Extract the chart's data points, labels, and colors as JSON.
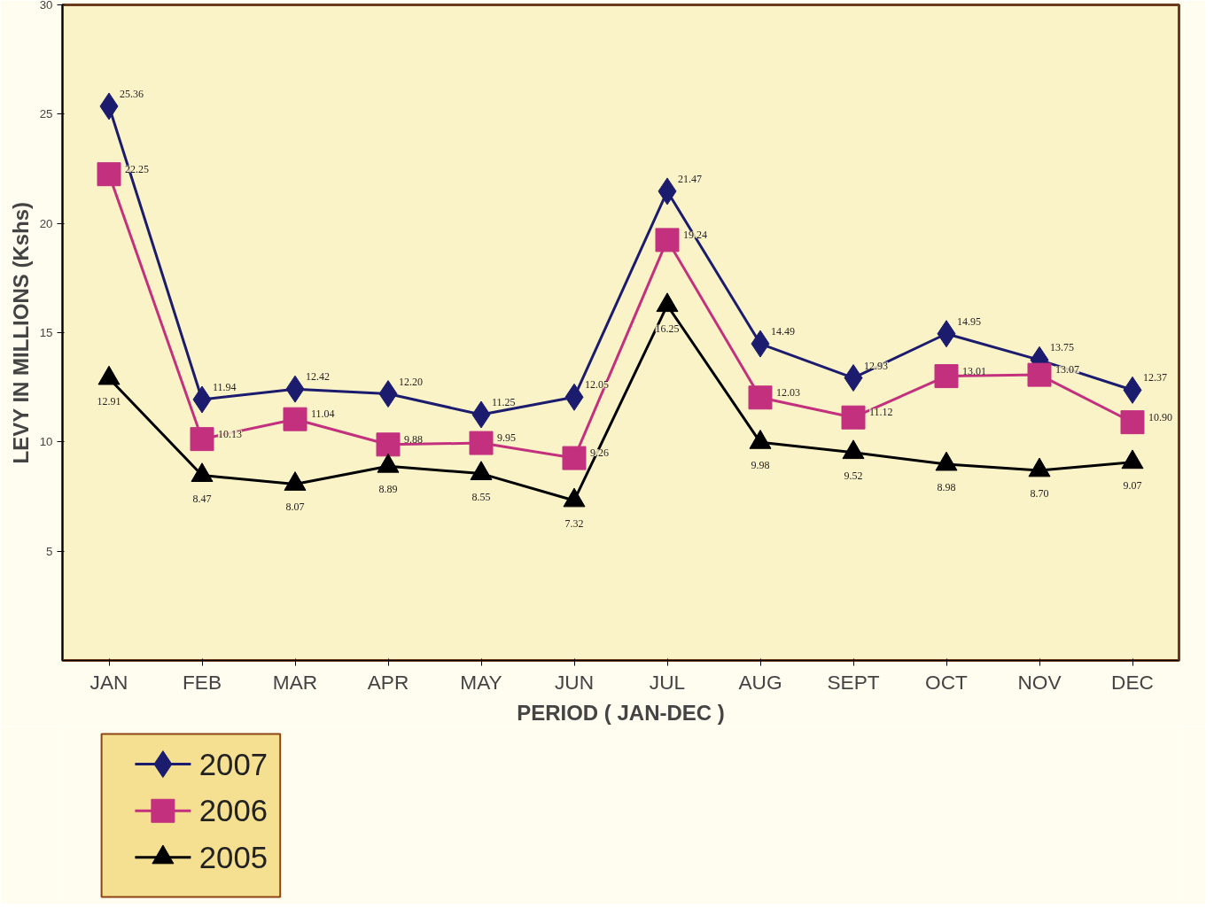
{
  "chart_data": {
    "type": "line",
    "xlabel": "PERIOD ( JAN-DEC )",
    "ylabel": "LEVY IN MILLIONS (Kshs)",
    "categories": [
      "JAN",
      "FEB",
      "MAR",
      "APR",
      "MAY",
      "JUN",
      "JUL",
      "AUG",
      "SEPT",
      "OCT",
      "NOV",
      "DEC"
    ],
    "series": [
      {
        "name": "2007",
        "color": "#1c1c6e",
        "marker": "diamond",
        "values": [
          25.36,
          11.94,
          12.42,
          12.2,
          11.25,
          12.05,
          21.47,
          14.49,
          12.93,
          14.95,
          13.75,
          12.37
        ],
        "value_labels": [
          "25.36",
          "11.94",
          "12.42",
          "12.20",
          "11.25",
          "12.05",
          "21.47",
          "14.49",
          "12.93",
          "14.95",
          "13.75",
          "12.37"
        ]
      },
      {
        "name": "2006",
        "color": "#c3307e",
        "marker": "square",
        "values": [
          22.25,
          10.13,
          11.04,
          9.88,
          9.95,
          9.26,
          19.24,
          12.03,
          11.12,
          13.01,
          13.07,
          10.9
        ],
        "value_labels": [
          "22.25",
          "10.13",
          "11.04",
          "9.88",
          "9.95",
          "9.26",
          "19.24",
          "12.03",
          "11.12",
          "13.01",
          "13.07",
          "10.90"
        ]
      },
      {
        "name": "2005",
        "color": "#000000",
        "marker": "triangle",
        "values": [
          12.91,
          8.47,
          8.07,
          8.89,
          8.55,
          7.32,
          16.25,
          9.98,
          9.52,
          8.98,
          8.7,
          9.07
        ],
        "value_labels": [
          "12.91",
          "8.47",
          "8.07",
          "8.89",
          "8.55",
          "7.32",
          "16.25",
          "9.98",
          "9.52",
          "8.98",
          "8.70",
          "9.07"
        ]
      }
    ],
    "ylim": [
      0,
      30
    ],
    "yticks": [
      5,
      10,
      15,
      20,
      25,
      30
    ],
    "grid": false,
    "legend": "bottom left",
    "line_style": "solid"
  }
}
